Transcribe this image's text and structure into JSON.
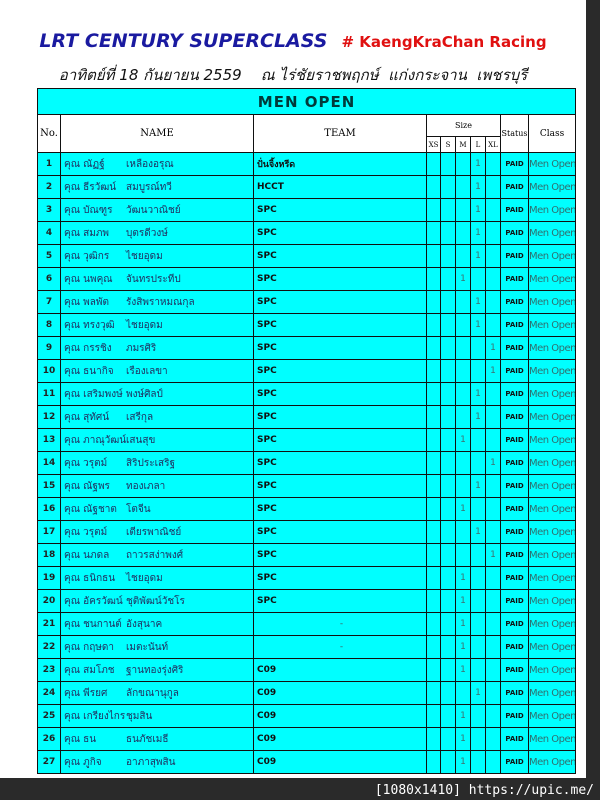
{
  "header": {
    "title": "LRT CENTURY SUPERCLASS",
    "tag": "# KaengKraChan Racing",
    "subtitle": "อาทิตย์ที่ 18 กันยายน 2559    ณ ไร่ชัยราชพฤกษ์  แก่งกระจาน  เพชรบุรี"
  },
  "table": {
    "caption": "MEN OPEN",
    "columns": {
      "no": "No.",
      "name": "NAME",
      "team": "TEAM",
      "size": "Size",
      "status": "Status",
      "class": "Class"
    },
    "sizes": [
      "XS",
      "S",
      "M",
      "L",
      "XL"
    ],
    "rows": [
      {
        "no": "1",
        "first": "คุณ ณัฏฐ์",
        "last": "เหลืองอรุณ",
        "team": "ปั่นจิ้งหรีด",
        "size": "L",
        "status": "PAID",
        "class": "Men Open"
      },
      {
        "no": "2",
        "first": "คุณ ธีรวัฒน์",
        "last": "สมบูรณ์ทวี",
        "team": "HCCT",
        "size": "L",
        "status": "PAID",
        "class": "Men Open"
      },
      {
        "no": "3",
        "first": "คุณ บัณฑูร",
        "last": "วัฒนวาณิชย์",
        "team": "SPC",
        "size": "L",
        "status": "PAID",
        "class": "Men Open"
      },
      {
        "no": "4",
        "first": "คุณ สมภพ",
        "last": "บุตรดีวงษ์",
        "team": "SPC",
        "size": "L",
        "status": "PAID",
        "class": "Men Open"
      },
      {
        "no": "5",
        "first": "คุณ วุฒิกร",
        "last": "ไชยอุดม",
        "team": "SPC",
        "size": "L",
        "status": "PAID",
        "class": "Men Open"
      },
      {
        "no": "6",
        "first": "คุณ นพคุณ",
        "last": "จันทรประทีป",
        "team": "SPC",
        "size": "M",
        "status": "PAID",
        "class": "Men Open"
      },
      {
        "no": "7",
        "first": "คุณ พลพัต",
        "last": "รังสิพราหมณกุล",
        "team": "SPC",
        "size": "L",
        "status": "PAID",
        "class": "Men Open"
      },
      {
        "no": "8",
        "first": "คุณ ทรงวุฒิ",
        "last": "ไชยอุดม",
        "team": "SPC",
        "size": "L",
        "status": "PAID",
        "class": "Men Open"
      },
      {
        "no": "9",
        "first": "คุณ กรรชิง",
        "last": "ภมรศิริ",
        "team": "SPC",
        "size": "XL",
        "status": "PAID",
        "class": "Men Open"
      },
      {
        "no": "10",
        "first": "คุณ ธนากิจ",
        "last": "เรืองเลขา",
        "team": "SPC",
        "size": "XL",
        "status": "PAID",
        "class": "Men Open"
      },
      {
        "no": "11",
        "first": "คุณ เสริมพงษ์",
        "last": "พงษ์ศิลป์",
        "team": "SPC",
        "size": "L",
        "status": "PAID",
        "class": "Men Open"
      },
      {
        "no": "12",
        "first": "คุณ สุทัศน์",
        "last": "เสรีกุล",
        "team": "SPC",
        "size": "L",
        "status": "PAID",
        "class": "Men Open"
      },
      {
        "no": "13",
        "first": "คุณ ภาณุวัฒน์",
        "last": "เสนสุข",
        "team": "SPC",
        "size": "M",
        "status": "PAID",
        "class": "Men Open"
      },
      {
        "no": "14",
        "first": "คุณ วรุตม์",
        "last": "สิริประเสริฐ",
        "team": "SPC",
        "size": "XL",
        "status": "PAID",
        "class": "Men Open"
      },
      {
        "no": "15",
        "first": "คุณ ณัฐพร",
        "last": "ทองเภลา",
        "team": "SPC",
        "size": "L",
        "status": "PAID",
        "class": "Men Open"
      },
      {
        "no": "16",
        "first": "คุณ ณัฐชาต",
        "last": "โตจีน",
        "team": "SPC",
        "size": "M",
        "status": "PAID",
        "class": "Men Open"
      },
      {
        "no": "17",
        "first": "คุณ วรุตม์",
        "last": "เตียรพาณิชย์",
        "team": "SPC",
        "size": "L",
        "status": "PAID",
        "class": "Men Open"
      },
      {
        "no": "18",
        "first": "คุณ นภดล",
        "last": "ถาวรสง่าพงศ์",
        "team": "SPC",
        "size": "XL",
        "status": "PAID",
        "class": "Men Open"
      },
      {
        "no": "19",
        "first": "คุณ ธนิกธน",
        "last": "ไชยอุดม",
        "team": "SPC",
        "size": "M",
        "status": "PAID",
        "class": "Men Open"
      },
      {
        "no": "20",
        "first": "คุณ อัครวัฒน์",
        "last": "ชุติพัฒน์วัชโร",
        "team": "SPC",
        "size": "M",
        "status": "PAID",
        "class": "Men Open"
      },
      {
        "no": "21",
        "first": "คุณ ชนกานต์",
        "last": "อังสุนาค",
        "team": "-",
        "size": "M",
        "status": "PAID",
        "class": "Men Open"
      },
      {
        "no": "22",
        "first": "คุณ กฤษดา",
        "last": "เมตะนันท์",
        "team": "-",
        "size": "M",
        "status": "PAID",
        "class": "Men Open"
      },
      {
        "no": "23",
        "first": "คุณ สมโภช",
        "last": "ฐานทองรุ่งศิริ",
        "team": "C09",
        "size": "M",
        "status": "PAID",
        "class": "Men Open"
      },
      {
        "no": "24",
        "first": "คุณ พีรยศ",
        "last": "ลักขณานุกูล",
        "team": "C09",
        "size": "L",
        "status": "PAID",
        "class": "Men Open"
      },
      {
        "no": "25",
        "first": "คุณ เกรียงไกร",
        "last": "ชุมสิน",
        "team": "C09",
        "size": "M",
        "status": "PAID",
        "class": "Men Open"
      },
      {
        "no": "26",
        "first": "คุณ ธน",
        "last": "ธนภัชเมธี",
        "team": "C09",
        "size": "M",
        "status": "PAID",
        "class": "Men Open"
      },
      {
        "no": "27",
        "first": "คุณ ภูกิจ",
        "last": "อาภาสุพสิน",
        "team": "C09",
        "size": "M",
        "status": "PAID",
        "class": "Men Open"
      }
    ]
  },
  "watermark": "[1080x1410] https://upic.me/"
}
